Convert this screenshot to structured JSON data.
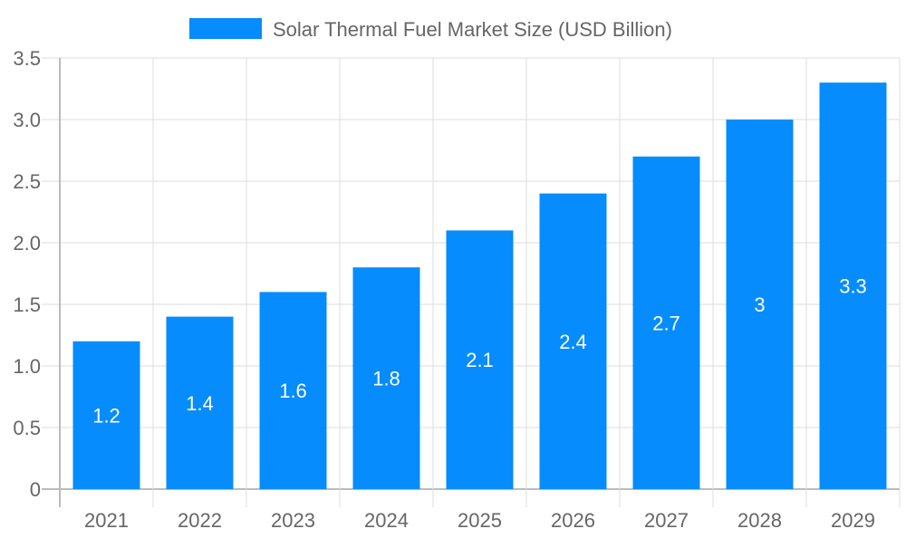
{
  "chart_data": {
    "type": "bar",
    "title": "",
    "xlabel": "",
    "ylabel": "",
    "categories": [
      "2021",
      "2022",
      "2023",
      "2024",
      "2025",
      "2026",
      "2027",
      "2028",
      "2029"
    ],
    "series": [
      {
        "name": "Solar Thermal Fuel Market Size (USD Billion)",
        "values": [
          1.2,
          1.4,
          1.6,
          1.8,
          2.1,
          2.4,
          2.7,
          3,
          3.3
        ],
        "color": "#068cfc"
      }
    ],
    "data_labels": [
      "1.2",
      "1.4",
      "1.6",
      "1.8",
      "2.1",
      "2.4",
      "2.7",
      "3",
      "3.3"
    ],
    "ylim": [
      0,
      3.5
    ],
    "yticks": [
      "0",
      "0.5",
      "1.0",
      "1.5",
      "2.0",
      "2.5",
      "3.0",
      "3.5"
    ],
    "grid": true,
    "legend_position": "top"
  }
}
